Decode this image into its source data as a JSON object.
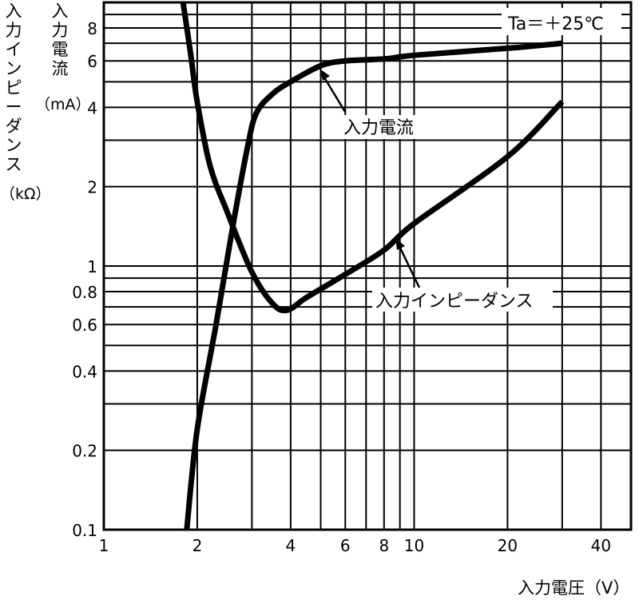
{
  "chart_data": {
    "type": "line",
    "title": "",
    "xlabel": "入力電圧（V）",
    "ylabel_primary": "入力インピーダンス",
    "ylabel_primary_unit": "（kΩ）",
    "ylabel_secondary": "入力電流",
    "ylabel_secondary_unit": "（mA）",
    "xscale": "log",
    "yscale": "log",
    "xlim": [
      1,
      50
    ],
    "ylim": [
      0.1,
      10
    ],
    "grid": true,
    "x_ticks": [
      1,
      2,
      4,
      6,
      8,
      10,
      20,
      40
    ],
    "x_ticklabels": [
      "1",
      "2",
      "4",
      "6",
      "8",
      "10",
      "20",
      "40"
    ],
    "y_ticks": [
      0.1,
      0.2,
      0.4,
      0.6,
      0.8,
      1,
      2,
      4,
      6,
      8
    ],
    "y_ticklabels": [
      "0.1",
      "0.2",
      "0.4",
      "0.6",
      "0.8",
      "1",
      "2",
      "4",
      "6",
      "8"
    ],
    "condition": "Ta＝＋25℃",
    "series": [
      {
        "name": "入力電流",
        "annotation": "入力電流",
        "points": [
          [
            1.85,
            0.1
          ],
          [
            2.0,
            0.24
          ],
          [
            2.3,
            0.6
          ],
          [
            2.6,
            1.4
          ],
          [
            2.9,
            2.8
          ],
          [
            3.1,
            3.8
          ],
          [
            3.5,
            4.5
          ],
          [
            4.0,
            5.0
          ],
          [
            5.0,
            5.75
          ],
          [
            6.0,
            6.0
          ],
          [
            8.0,
            6.1
          ],
          [
            10.0,
            6.3
          ],
          [
            20.0,
            6.7
          ],
          [
            30.0,
            7.0
          ]
        ]
      },
      {
        "name": "入力インピーダンス",
        "annotation": "入力インピーダンス",
        "points": [
          [
            1.8,
            10.0
          ],
          [
            1.9,
            6.5
          ],
          [
            2.0,
            4.2
          ],
          [
            2.2,
            2.4
          ],
          [
            2.5,
            1.6
          ],
          [
            3.0,
            0.95
          ],
          [
            3.5,
            0.72
          ],
          [
            3.9,
            0.68
          ],
          [
            4.5,
            0.76
          ],
          [
            6.0,
            0.93
          ],
          [
            8.0,
            1.15
          ],
          [
            10.0,
            1.45
          ],
          [
            20.0,
            2.6
          ],
          [
            30.0,
            4.2
          ]
        ]
      }
    ]
  }
}
